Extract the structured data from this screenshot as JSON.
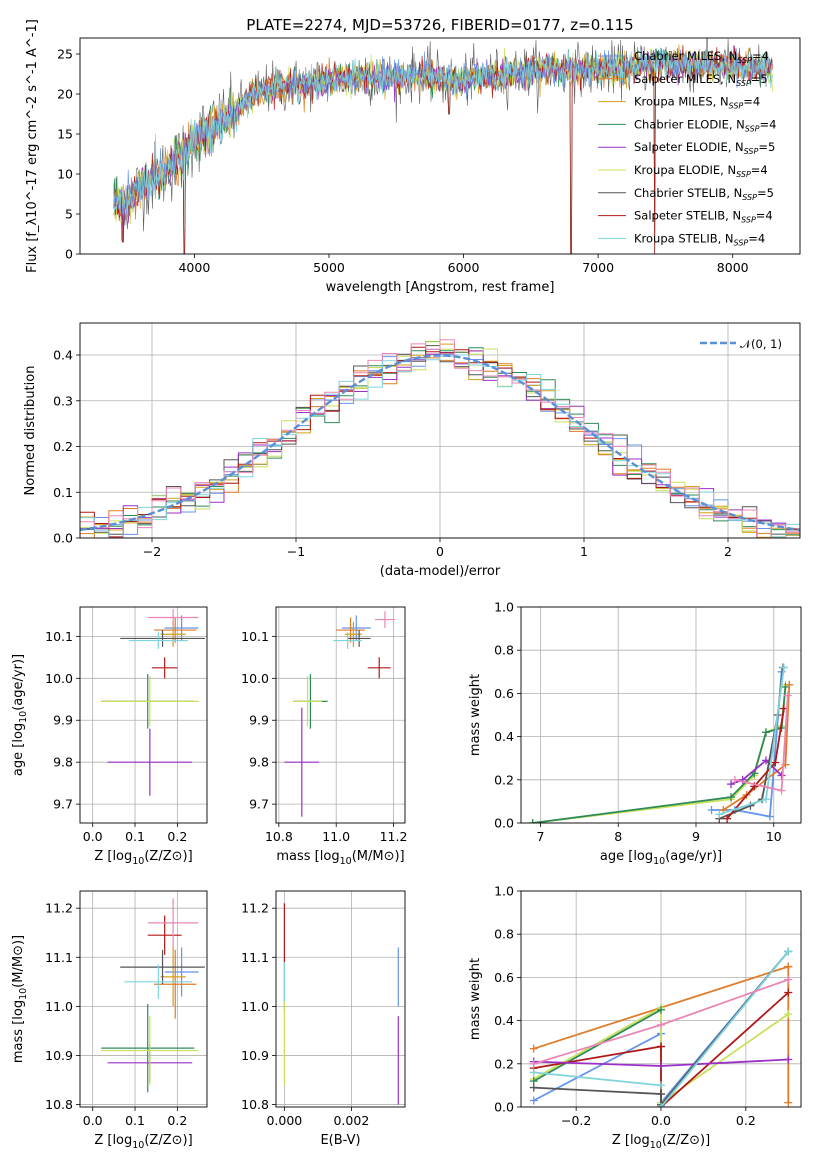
{
  "figure": {
    "title": "PLATE=2274, MJD=53726, FIBERID=0177, z=0.115"
  },
  "colors": {
    "chabrier_miles": "#6495ed",
    "salpeter_miles": "#e07b28",
    "kroupa_miles": "#d4a017",
    "chabrier_elodie": "#2e8b57",
    "salpeter_elodie": "#9b30c8",
    "kroupa_elodie": "#c8e05a",
    "chabrier_stelib": "#555555",
    "salpeter_stelib": "#b01818",
    "kroupa_stelib": "#7ed4dc",
    "pink": "#ea86b6"
  },
  "chart_data": [
    {
      "id": "spectrum",
      "type": "line",
      "title": "PLATE=2274, MJD=53726, FIBERID=0177, z=0.115",
      "xlabel": "wavelength [Angstrom, rest frame]",
      "ylabel": "Flux [f_λ10^-17 erg cm^-2 s^-1 A^-1]",
      "xlim": [
        3150,
        8500
      ],
      "ylim": [
        0,
        27
      ],
      "xticks": [
        4000,
        5000,
        6000,
        7000,
        8000
      ],
      "yticks": [
        0,
        5,
        10,
        15,
        20,
        25
      ],
      "legend_position": "right",
      "legend": [
        {
          "label": "Chabrier MILES, N",
          "sub": "SSP",
          "suffix": "=4",
          "color": "#6495ed"
        },
        {
          "label": "Salpeter MILES, N",
          "sub": "SSP",
          "suffix": "=5",
          "color": "#e07b28"
        },
        {
          "label": "Kroupa MILES, N",
          "sub": "SSP",
          "suffix": "=4",
          "color": "#d4a017"
        },
        {
          "label": "Chabrier ELODIE, N",
          "sub": "SSP",
          "suffix": "=4",
          "color": "#2e8b57"
        },
        {
          "label": "Salpeter ELODIE, N",
          "sub": "SSP",
          "suffix": "=5",
          "color": "#9b30c8"
        },
        {
          "label": "Kroupa ELODIE, N",
          "sub": "SSP",
          "suffix": "=4",
          "color": "#c8e05a"
        },
        {
          "label": "Chabrier STELIB, N",
          "sub": "SSP",
          "suffix": "=5",
          "color": "#555555"
        },
        {
          "label": "Salpeter STELIB, N",
          "sub": "SSP",
          "suffix": "=4",
          "color": "#b01818"
        },
        {
          "label": "Kroupa STELIB, N",
          "sub": "SSP",
          "suffix": "=4",
          "color": "#7ed4dc"
        }
      ],
      "continuum_x": [
        3400,
        3500,
        3600,
        3700,
        3800,
        3900,
        4000,
        4100,
        4200,
        4300,
        4400,
        4500,
        4700,
        4900,
        5100,
        5300,
        5500,
        5700,
        5900,
        6100,
        6300,
        6500,
        6700,
        6900,
        7100,
        7300,
        7500,
        7700,
        8000,
        8300
      ],
      "continuum_y": [
        6.5,
        6.2,
        8.5,
        9.5,
        10.5,
        12.0,
        14.5,
        15.5,
        16.5,
        17.5,
        19.5,
        20.5,
        21.0,
        21.5,
        22.0,
        22.0,
        22.0,
        22.5,
        21.5,
        22.0,
        22.5,
        23.0,
        23.0,
        23.0,
        23.0,
        23.5,
        24.0,
        23.5,
        23.5,
        23.0
      ],
      "dips": [
        {
          "x": 3470,
          "y": 1.5
        },
        {
          "x": 3925,
          "y": 0
        },
        {
          "x": 5895,
          "y": 17.5
        },
        {
          "x": 6800,
          "y": 0
        },
        {
          "x": 7420,
          "y": 0
        }
      ]
    },
    {
      "id": "residuals",
      "type": "histogram",
      "xlabel": "(data-model)/error",
      "ylabel": "Normed distribution",
      "xlim": [
        -2.5,
        2.5
      ],
      "ylim": [
        0,
        0.47
      ],
      "xticks": [
        -2,
        -1,
        0,
        1,
        2
      ],
      "yticks": [
        0.0,
        0.1,
        0.2,
        0.3,
        0.4
      ],
      "legend_label": "𝒩(0, 1)",
      "legend_position": "top-right",
      "bin_width": 0.1
    },
    {
      "id": "age_vs_Z",
      "type": "scatter",
      "xlabel": "Z [log10(Z/Z⊙)]",
      "ylabel": "age  [log10(age/yr)]",
      "xlim": [
        -0.03,
        0.27
      ],
      "ylim": [
        9.655,
        10.17
      ],
      "xticks": [
        0.0,
        0.1,
        0.2
      ],
      "yticks": [
        9.7,
        9.8,
        9.9,
        10.0,
        10.1
      ],
      "points": [
        {
          "x": 0.21,
          "y": 10.12,
          "xerr": 0.04,
          "yerr": 0.03,
          "c": "#6495ed"
        },
        {
          "x": 0.195,
          "y": 10.115,
          "xerr": 0.05,
          "yerr": 0.03,
          "c": "#e07b28"
        },
        {
          "x": 0.19,
          "y": 10.105,
          "xerr": 0.03,
          "yerr": 0.03,
          "c": "#d4a017"
        },
        {
          "x": 0.13,
          "y": 9.945,
          "xerr": 0.11,
          "yerr": 0.065,
          "c": "#2e8b57"
        },
        {
          "x": 0.135,
          "y": 9.8,
          "xerr": 0.1,
          "yerr": 0.08,
          "c": "#9b30c8"
        },
        {
          "x": 0.135,
          "y": 9.945,
          "xerr": 0.115,
          "yerr": 0.06,
          "c": "#c8e05a"
        },
        {
          "x": 0.165,
          "y": 10.095,
          "xerr": 0.1,
          "yerr": 0.02,
          "c": "#555555"
        },
        {
          "x": 0.17,
          "y": 10.025,
          "xerr": 0.03,
          "yerr": 0.025,
          "c": "#b01818"
        },
        {
          "x": 0.155,
          "y": 10.09,
          "xerr": 0.07,
          "yerr": 0.02,
          "c": "#7ed4dc"
        },
        {
          "x": 0.19,
          "y": 10.145,
          "xerr": 0.06,
          "yerr": 0.02,
          "c": "#ea86b6"
        }
      ]
    },
    {
      "id": "age_vs_mass",
      "type": "scatter",
      "xlabel": "mass [log10(M/M⊙)]",
      "ylabel": "",
      "xlim": [
        10.79,
        11.24
      ],
      "ylim": [
        9.655,
        10.17
      ],
      "xticks": [
        10.8,
        11.0,
        11.2
      ],
      "yticks": [
        9.7,
        9.8,
        9.9,
        10.0,
        10.1
      ],
      "points": [
        {
          "x": 11.07,
          "y": 10.12,
          "xerr": 0.05,
          "yerr": 0.03,
          "c": "#6495ed"
        },
        {
          "x": 11.05,
          "y": 10.115,
          "xerr": 0.05,
          "yerr": 0.03,
          "c": "#e07b28"
        },
        {
          "x": 11.06,
          "y": 10.105,
          "xerr": 0.03,
          "yerr": 0.03,
          "c": "#d4a017"
        },
        {
          "x": 10.91,
          "y": 9.945,
          "xerr": 0.06,
          "yerr": 0.065,
          "c": "#2e8b57"
        },
        {
          "x": 10.88,
          "y": 9.8,
          "xerr": 0.06,
          "yerr": 0.13,
          "c": "#9b30c8"
        },
        {
          "x": 10.9,
          "y": 9.945,
          "xerr": 0.05,
          "yerr": 0.06,
          "c": "#c8e05a"
        },
        {
          "x": 11.08,
          "y": 10.095,
          "xerr": 0.04,
          "yerr": 0.02,
          "c": "#555555"
        },
        {
          "x": 11.15,
          "y": 10.025,
          "xerr": 0.04,
          "yerr": 0.025,
          "c": "#b01818"
        },
        {
          "x": 11.04,
          "y": 10.09,
          "xerr": 0.05,
          "yerr": 0.02,
          "c": "#7ed4dc"
        },
        {
          "x": 11.17,
          "y": 10.14,
          "xerr": 0.035,
          "yerr": 0.02,
          "c": "#ea86b6"
        }
      ]
    },
    {
      "id": "massweight_vs_age",
      "type": "line",
      "xlabel": "age  [log10(age/yr)]",
      "ylabel": "mass weight",
      "xlim": [
        6.75,
        10.35
      ],
      "ylim": [
        0,
        1.0
      ],
      "xticks": [
        7,
        8,
        9,
        10
      ],
      "yticks": [
        0.0,
        0.2,
        0.4,
        0.6,
        0.8,
        1.0
      ],
      "series": [
        {
          "c": "#c8e05a",
          "x": [
            6.9,
            9.45,
            9.75,
            9.9,
            10.1,
            10.15
          ],
          "y": [
            0.0,
            0.11,
            0.22,
            0.42,
            0.45,
            0.64
          ]
        },
        {
          "c": "#2e8b57",
          "x": [
            6.9,
            9.45,
            9.75,
            9.9,
            10.1,
            10.15
          ],
          "y": [
            0.0,
            0.12,
            0.23,
            0.42,
            0.44,
            0.63
          ]
        },
        {
          "c": "#6495ed",
          "x": [
            9.2,
            9.5,
            9.95,
            10.1
          ],
          "y": [
            0.06,
            0.06,
            0.03,
            0.7
          ]
        },
        {
          "c": "#e07b28",
          "x": [
            9.35,
            9.65,
            10.15,
            10.2
          ],
          "y": [
            0.06,
            0.13,
            0.27,
            0.64
          ]
        },
        {
          "c": "#9b30c8",
          "x": [
            9.45,
            9.6,
            9.9,
            10.1
          ],
          "y": [
            0.18,
            0.2,
            0.29,
            0.22
          ]
        },
        {
          "c": "#555555",
          "x": [
            9.3,
            9.7,
            9.85,
            10.05,
            10.12
          ],
          "y": [
            0.02,
            0.08,
            0.11,
            0.5,
            0.72
          ]
        },
        {
          "c": "#b01818",
          "x": [
            9.4,
            9.75,
            10.02,
            10.13
          ],
          "y": [
            0.02,
            0.17,
            0.28,
            0.53
          ]
        },
        {
          "c": "#7ed4dc",
          "x": [
            9.3,
            9.9,
            10.13
          ],
          "y": [
            0.04,
            0.11,
            0.72
          ]
        },
        {
          "c": "#ea86b6",
          "x": [
            9.5,
            10.1,
            10.18
          ],
          "y": [
            0.2,
            0.15,
            0.59
          ]
        }
      ]
    },
    {
      "id": "mass_vs_Z",
      "type": "scatter",
      "xlabel": "Z [log10(Z/Z⊙)]",
      "ylabel": "mass [log10(M/M⊙)]",
      "xlim": [
        -0.03,
        0.27
      ],
      "ylim": [
        10.795,
        11.235
      ],
      "xticks": [
        0.0,
        0.1,
        0.2
      ],
      "yticks": [
        10.8,
        10.9,
        11.0,
        11.1,
        11.2
      ],
      "points": [
        {
          "x": 0.21,
          "y": 11.07,
          "xerr": 0.04,
          "yerr": 0.05,
          "c": "#6495ed"
        },
        {
          "x": 0.195,
          "y": 11.045,
          "xerr": 0.05,
          "yerr": 0.07,
          "c": "#e07b28"
        },
        {
          "x": 0.19,
          "y": 11.06,
          "xerr": 0.03,
          "yerr": 0.06,
          "c": "#d4a017"
        },
        {
          "x": 0.13,
          "y": 10.915,
          "xerr": 0.11,
          "yerr": 0.09,
          "c": "#2e8b57"
        },
        {
          "x": 0.135,
          "y": 10.885,
          "xerr": 0.1,
          "yerr": 0.04,
          "c": "#9b30c8"
        },
        {
          "x": 0.135,
          "y": 10.91,
          "xerr": 0.115,
          "yerr": 0.07,
          "c": "#c8e05a"
        },
        {
          "x": 0.165,
          "y": 11.08,
          "xerr": 0.1,
          "yerr": 0.035,
          "c": "#555555"
        },
        {
          "x": 0.17,
          "y": 11.145,
          "xerr": 0.04,
          "yerr": 0.04,
          "c": "#b01818"
        },
        {
          "x": 0.155,
          "y": 11.05,
          "xerr": 0.08,
          "yerr": 0.035,
          "c": "#7ed4dc"
        },
        {
          "x": 0.19,
          "y": 11.17,
          "xerr": 0.06,
          "yerr": 0.05,
          "c": "#ea86b6"
        }
      ]
    },
    {
      "id": "mass_vs_ebv",
      "type": "scatter",
      "xlabel": "E(B-V)",
      "ylabel": "",
      "xlim": [
        -0.00025,
        0.0036
      ],
      "ylim": [
        10.795,
        11.235
      ],
      "xticks": [
        0.0,
        0.002
      ],
      "xtick_labels": [
        "0.000",
        "0.002"
      ],
      "yticks": [
        10.8,
        10.9,
        11.0,
        11.1,
        11.2
      ],
      "points": [
        {
          "x": 0.0,
          "y": 11.15,
          "xerr": 0,
          "yerr": 0.06,
          "c": "#b01818"
        },
        {
          "x": 0.0,
          "y": 11.04,
          "xerr": 0,
          "yerr": 0.05,
          "c": "#d4a017"
        },
        {
          "x": 0.0,
          "y": 10.93,
          "xerr": 0,
          "yerr": 0.09,
          "c": "#c8e05a"
        },
        {
          "x": 0.0,
          "y": 11.05,
          "xerr": 0,
          "yerr": 0.04,
          "c": "#7ed4dc"
        },
        {
          "x": 0.0034,
          "y": 11.06,
          "xerr": 0,
          "yerr": 0.06,
          "c": "#6495ed"
        },
        {
          "x": 0.0034,
          "y": 10.89,
          "xerr": 0,
          "yerr": 0.09,
          "c": "#9b30c8"
        }
      ]
    },
    {
      "id": "massweight_vs_Z",
      "type": "line",
      "xlabel": "Z [log10(Z/Z⊙)]",
      "ylabel": "mass weight",
      "xlim": [
        -0.33,
        0.33
      ],
      "ylim": [
        0,
        1.0
      ],
      "xticks": [
        -0.2,
        0.0,
        0.2
      ],
      "yticks": [
        0.0,
        0.2,
        0.4,
        0.6,
        0.8,
        1.0
      ],
      "series": [
        {
          "c": "#e07b28",
          "x": [
            -0.3,
            0.3
          ],
          "y": [
            0.27,
            0.65
          ]
        },
        {
          "c": "#e07b28",
          "x": [
            0.3,
            0.3
          ],
          "y": [
            0.65,
            0.02
          ]
        },
        {
          "c": "#6495ed",
          "x": [
            -0.3,
            0.0
          ],
          "y": [
            0.03,
            0.34
          ]
        },
        {
          "c": "#6495ed",
          "x": [
            0.0,
            0.0
          ],
          "y": [
            0.34,
            0.02
          ]
        },
        {
          "c": "#6495ed",
          "x": [
            0.0,
            0.3
          ],
          "y": [
            0.02,
            0.72
          ]
        },
        {
          "c": "#c8e05a",
          "x": [
            -0.3,
            0.0
          ],
          "y": [
            0.13,
            0.46
          ]
        },
        {
          "c": "#c8e05a",
          "x": [
            0.0,
            0.0
          ],
          "y": [
            0.46,
            0.02
          ]
        },
        {
          "c": "#c8e05a",
          "x": [
            0.0,
            0.3
          ],
          "y": [
            0.02,
            0.43
          ]
        },
        {
          "c": "#2e8b57",
          "x": [
            -0.3,
            0.0
          ],
          "y": [
            0.12,
            0.45
          ]
        },
        {
          "c": "#b01818",
          "x": [
            -0.3,
            0.0
          ],
          "y": [
            0.18,
            0.28
          ]
        },
        {
          "c": "#b01818",
          "x": [
            0.0,
            0.0
          ],
          "y": [
            0.28,
            0.0
          ]
        },
        {
          "c": "#b01818",
          "x": [
            0.0,
            0.3
          ],
          "y": [
            0.0,
            0.53
          ]
        },
        {
          "c": "#9b30c8",
          "x": [
            -0.3,
            0.0,
            0.3
          ],
          "y": [
            0.21,
            0.19,
            0.22
          ]
        },
        {
          "c": "#555555",
          "x": [
            -0.3,
            0.0
          ],
          "y": [
            0.09,
            0.06
          ]
        },
        {
          "c": "#555555",
          "x": [
            0.0,
            0.0
          ],
          "y": [
            0.06,
            0.01
          ]
        },
        {
          "c": "#555555",
          "x": [
            0.0,
            0.3
          ],
          "y": [
            0.01,
            0.72
          ]
        },
        {
          "c": "#7ed4dc",
          "x": [
            -0.3,
            0.0
          ],
          "y": [
            0.16,
            0.1
          ]
        },
        {
          "c": "#7ed4dc",
          "x": [
            0.0,
            0.3
          ],
          "y": [
            0.0,
            0.72
          ]
        },
        {
          "c": "#ea86b6",
          "x": [
            -0.3,
            0.0,
            0.3
          ],
          "y": [
            0.2,
            0.38,
            0.59
          ]
        }
      ]
    }
  ]
}
